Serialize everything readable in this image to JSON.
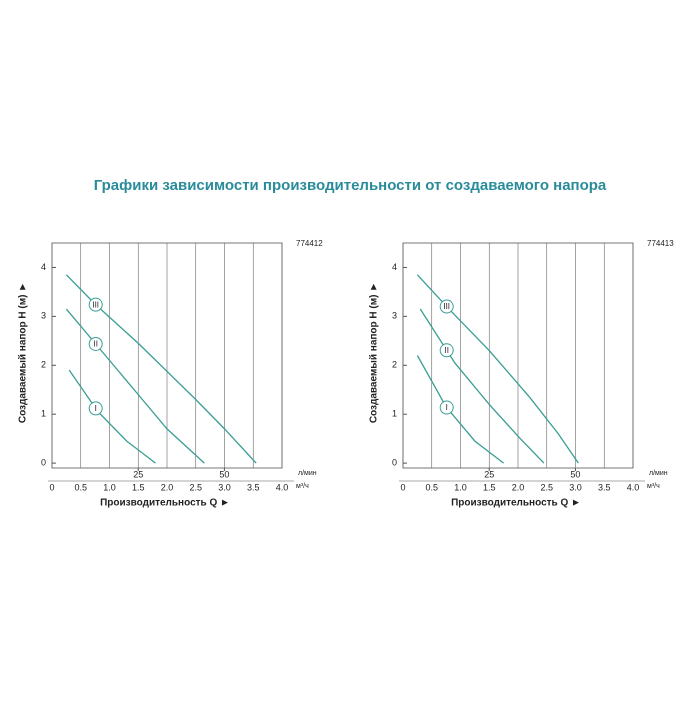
{
  "title": "Графики зависимости производительности от создаваемого напора",
  "chart_data": [
    {
      "type": "line",
      "id": "774412",
      "ylabel": "Создаваемый напор H (м) ►",
      "xlabel": "Производительность Q ►",
      "xunit": "м³/ч",
      "x2unit": "л/мин",
      "xlim": [
        0,
        4
      ],
      "xticks": [
        0,
        0.5,
        {
          "value": 1,
          "label": "1.0"
        },
        1.5,
        {
          "value": 2,
          "label": "2.0"
        },
        2.5,
        {
          "value": 3,
          "label": "3.0"
        },
        3.5,
        {
          "value": 4,
          "label": "4.0"
        }
      ],
      "x2lim": [
        0,
        66.7
      ],
      "x2ticks": [
        25,
        50
      ],
      "ylim": [
        -0.1,
        4.5
      ],
      "yticks": [
        0,
        1,
        2,
        3,
        4
      ],
      "grid": true,
      "series": [
        {
          "name": "I",
          "color": "#3a9e94",
          "x": [
            0.3,
            0.8,
            1.3,
            1.8
          ],
          "values": [
            1.9,
            1.05,
            0.45,
            0
          ]
        },
        {
          "name": "II",
          "color": "#3a9e94",
          "x": [
            0.25,
            1.0,
            1.5,
            2.0,
            2.65
          ],
          "values": [
            3.15,
            2.1,
            1.4,
            0.7,
            0
          ]
        },
        {
          "name": "III",
          "color": "#3a9e94",
          "x": [
            0.25,
            0.75,
            1.5,
            2.5,
            3.0,
            3.55
          ],
          "values": [
            3.85,
            3.25,
            2.45,
            1.3,
            0.7,
            0
          ]
        }
      ]
    },
    {
      "type": "line",
      "id": "774413",
      "ylabel": "Создаваемый напор H (м) ►",
      "xlabel": "Производительность Q ►",
      "xunit": "м³/ч",
      "x2unit": "л/мин",
      "xlim": [
        0,
        4
      ],
      "xticks": [
        0,
        0.5,
        {
          "value": 1,
          "label": "1.0"
        },
        1.5,
        {
          "value": 2,
          "label": "2.0"
        },
        2.5,
        {
          "value": 3,
          "label": "3.0"
        },
        3.5,
        {
          "value": 4,
          "label": "4.0"
        }
      ],
      "x2lim": [
        0,
        66.7
      ],
      "x2ticks": [
        25,
        50
      ],
      "ylim": [
        -0.1,
        4.5
      ],
      "yticks": [
        0,
        1,
        2,
        3,
        4
      ],
      "grid": true,
      "series": [
        {
          "name": "I",
          "color": "#3a9e94",
          "x": [
            0.25,
            0.75,
            1.25,
            1.75
          ],
          "values": [
            2.2,
            1.15,
            0.45,
            0
          ]
        },
        {
          "name": "II",
          "color": "#3a9e94",
          "x": [
            0.3,
            0.9,
            1.5,
            2.0,
            2.45
          ],
          "values": [
            3.15,
            2.05,
            1.2,
            0.55,
            0
          ]
        },
        {
          "name": "III",
          "color": "#3a9e94",
          "x": [
            0.25,
            0.8,
            1.5,
            2.2,
            2.7,
            3.05
          ],
          "values": [
            3.85,
            3.15,
            2.3,
            1.35,
            0.6,
            0
          ]
        }
      ]
    }
  ]
}
